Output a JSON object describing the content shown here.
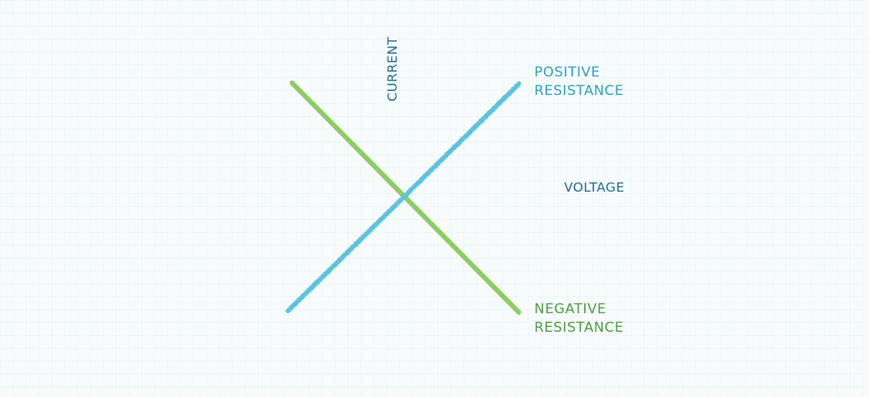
{
  "diagram": {
    "y_axis_label": "CURRENT",
    "x_axis_label": "VOLTAGE",
    "positive": {
      "line1": "POSITIVE",
      "line2": "RESISTANCE",
      "color": "#5bc3dc",
      "text_color": "#2f9fc0"
    },
    "negative": {
      "line1": "NEGATIVE",
      "line2": "RESISTANCE",
      "color": "#8fcb62",
      "text_color": "#4d9b43"
    },
    "axis_color": "#5f6366",
    "axis_label_color": "#1f6c8a",
    "grid_color": "#e3f1f4"
  }
}
